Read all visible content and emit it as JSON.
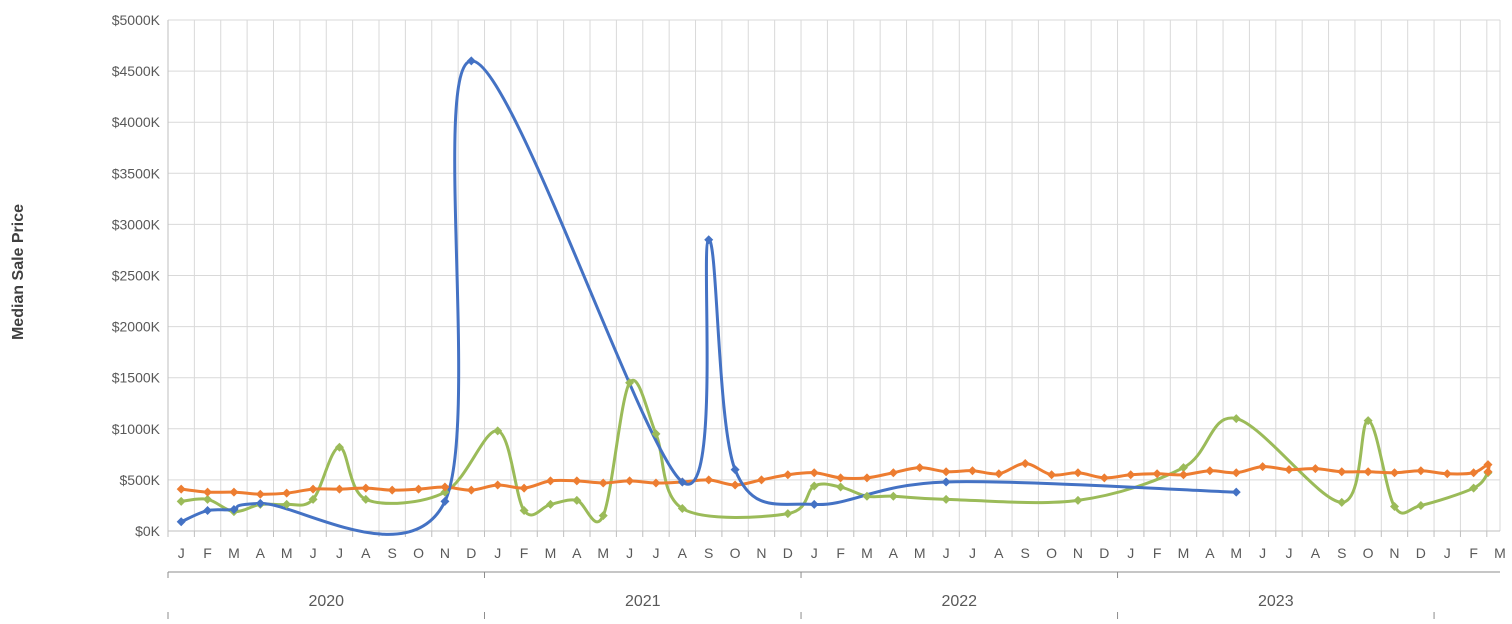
{
  "chart_data": {
    "type": "line",
    "ylabel": "Median Sale Price",
    "ylim": [
      0,
      5000
    ],
    "y_ticks": [
      0,
      500,
      1000,
      1500,
      2000,
      2500,
      3000,
      3500,
      4000,
      4500,
      5000
    ],
    "y_tick_labels": [
      "$0K",
      "$500K",
      "$1000K",
      "$1500K",
      "$2000K",
      "$2500K",
      "$3000K",
      "$3500K",
      "$4000K",
      "$4500K",
      "$5000K"
    ],
    "months": [
      "J",
      "F",
      "M",
      "A",
      "M",
      "J",
      "J",
      "A",
      "S",
      "O",
      "N",
      "D",
      "J",
      "F",
      "M",
      "A",
      "M",
      "J",
      "J",
      "A",
      "S",
      "O",
      "N",
      "D",
      "J",
      "F",
      "M",
      "A",
      "M",
      "J",
      "J",
      "A",
      "S",
      "O",
      "N",
      "D",
      "J",
      "F",
      "M",
      "A",
      "M",
      "J",
      "J",
      "A",
      "S",
      "O",
      "N",
      "D",
      "J",
      "F",
      "M"
    ],
    "years": [
      {
        "label": "2020",
        "start": 0,
        "end": 12
      },
      {
        "label": "2021",
        "start": 12,
        "end": 24
      },
      {
        "label": "2022",
        "start": 24,
        "end": 36
      },
      {
        "label": "2023",
        "start": 36,
        "end": 48
      }
    ],
    "grid": true,
    "legend": "none",
    "series": [
      {
        "color": "#4472C4",
        "points": [
          [
            0,
            90
          ],
          [
            1,
            200
          ],
          [
            2,
            210
          ],
          [
            3,
            270
          ],
          [
            10,
            290
          ],
          [
            11,
            4600
          ],
          [
            19,
            480
          ],
          [
            20,
            2850
          ],
          [
            21,
            600
          ],
          [
            24,
            260
          ],
          [
            29,
            480
          ],
          [
            40,
            380
          ]
        ]
      },
      {
        "color": "#ED7D31",
        "points": [
          [
            0,
            410
          ],
          [
            1,
            380
          ],
          [
            2,
            380
          ],
          [
            3,
            360
          ],
          [
            4,
            370
          ],
          [
            5,
            410
          ],
          [
            6,
            410
          ],
          [
            7,
            420
          ],
          [
            8,
            400
          ],
          [
            9,
            410
          ],
          [
            10,
            430
          ],
          [
            11,
            400
          ],
          [
            12,
            450
          ],
          [
            13,
            420
          ],
          [
            14,
            490
          ],
          [
            15,
            490
          ],
          [
            16,
            470
          ],
          [
            17,
            490
          ],
          [
            18,
            470
          ],
          [
            19,
            480
          ],
          [
            20,
            500
          ],
          [
            21,
            450
          ],
          [
            22,
            500
          ],
          [
            23,
            550
          ],
          [
            24,
            570
          ],
          [
            25,
            520
          ],
          [
            26,
            520
          ],
          [
            27,
            570
          ],
          [
            28,
            620
          ],
          [
            29,
            580
          ],
          [
            30,
            590
          ],
          [
            31,
            560
          ],
          [
            32,
            660
          ],
          [
            33,
            550
          ],
          [
            34,
            570
          ],
          [
            35,
            520
          ],
          [
            36,
            550
          ],
          [
            37,
            560
          ],
          [
            38,
            550
          ],
          [
            39,
            590
          ],
          [
            40,
            570
          ],
          [
            41,
            630
          ],
          [
            42,
            600
          ],
          [
            43,
            610
          ],
          [
            44,
            580
          ],
          [
            45,
            580
          ],
          [
            46,
            570
          ],
          [
            47,
            590
          ],
          [
            48,
            560
          ],
          [
            49,
            570
          ],
          [
            50,
            650
          ],
          [
            51,
            580
          ]
        ]
      },
      {
        "color": "#9BBB59",
        "points": [
          [
            0,
            290
          ],
          [
            1,
            310
          ],
          [
            2,
            190
          ],
          [
            3,
            260
          ],
          [
            4,
            260
          ],
          [
            5,
            310
          ],
          [
            6,
            820
          ],
          [
            7,
            310
          ],
          [
            10,
            380
          ],
          [
            12,
            980
          ],
          [
            13,
            200
          ],
          [
            14,
            260
          ],
          [
            15,
            300
          ],
          [
            16,
            150
          ],
          [
            17,
            1450
          ],
          [
            18,
            950
          ],
          [
            19,
            220
          ],
          [
            23,
            170
          ],
          [
            24,
            440
          ],
          [
            25,
            430
          ],
          [
            26,
            340
          ],
          [
            27,
            340
          ],
          [
            29,
            310
          ],
          [
            34,
            300
          ],
          [
            38,
            620
          ],
          [
            40,
            1100
          ],
          [
            44,
            280
          ],
          [
            45,
            1080
          ],
          [
            46,
            240
          ],
          [
            47,
            250
          ],
          [
            49,
            420
          ],
          [
            52,
            570
          ]
        ]
      }
    ]
  }
}
